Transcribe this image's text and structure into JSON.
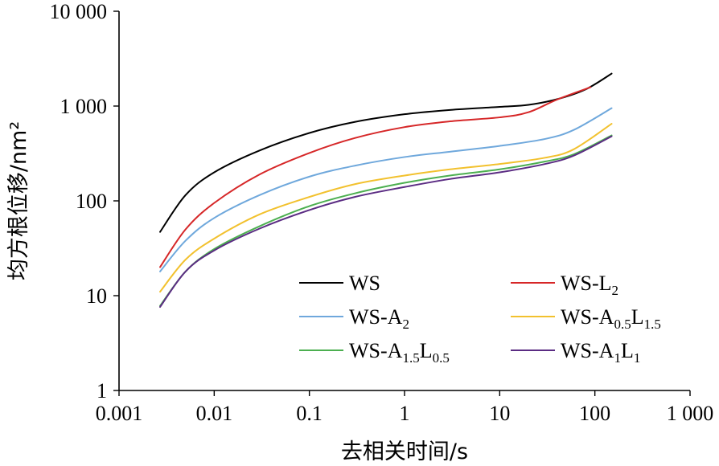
{
  "chart_data": {
    "type": "line",
    "title": "",
    "xlabel": "去相关时间/s",
    "ylabel": "均方根位移/nm²",
    "x_scale": "log",
    "y_scale": "log",
    "xlim": [
      0.001,
      1000
    ],
    "ylim": [
      1,
      10000
    ],
    "grid": false,
    "legend_position": "lower-right",
    "x_ticks": [
      0.001,
      0.01,
      0.1,
      1,
      10,
      100,
      1000
    ],
    "x_tick_labels": [
      "0.001",
      "0.01",
      "0.1",
      "1",
      "10",
      "100",
      "1 000"
    ],
    "y_ticks": [
      1,
      10,
      100,
      1000,
      10000
    ],
    "y_tick_labels": [
      "1",
      "10",
      "100",
      "1 000",
      "10 000"
    ],
    "series": [
      {
        "name": "WS",
        "legend": {
          "base": "WS",
          "parts": []
        },
        "color": "#000000",
        "x": [
          0.0027,
          0.005,
          0.01,
          0.03,
          0.1,
          0.3,
          1,
          3,
          10,
          20,
          40,
          80,
          150
        ],
        "y": [
          47,
          115,
          200,
          340,
          520,
          680,
          820,
          910,
          980,
          1030,
          1180,
          1500,
          2200
        ]
      },
      {
        "name": "WS-L2",
        "legend": {
          "base": "WS-L",
          "parts": [
            {
              "text": "2",
              "sub": true
            }
          ]
        },
        "color": "#d62728",
        "x": [
          0.0027,
          0.005,
          0.01,
          0.03,
          0.1,
          0.3,
          1,
          3,
          10,
          20,
          40,
          90
        ],
        "y": [
          20,
          50,
          95,
          190,
          320,
          460,
          600,
          690,
          760,
          860,
          1170,
          1580
        ]
      },
      {
        "name": "WS-A2",
        "legend": {
          "base": "WS-A",
          "parts": [
            {
              "text": "2",
              "sub": true
            }
          ]
        },
        "color": "#6fa8dc",
        "x": [
          0.0027,
          0.005,
          0.01,
          0.03,
          0.1,
          0.3,
          1,
          3,
          10,
          30,
          60,
          150
        ],
        "y": [
          18,
          38,
          66,
          115,
          180,
          235,
          290,
          330,
          380,
          450,
          560,
          950
        ]
      },
      {
        "name": "WS-A0.5L1.5",
        "legend": {
          "base": "WS-A",
          "parts": [
            {
              "text": "0.5",
              "sub": true
            },
            {
              "text": "L",
              "sub": false
            },
            {
              "text": "1.5",
              "sub": true
            }
          ]
        },
        "color": "#f2c12e",
        "x": [
          0.0027,
          0.005,
          0.01,
          0.03,
          0.1,
          0.3,
          1,
          3,
          10,
          30,
          60,
          150
        ],
        "y": [
          11,
          24,
          40,
          72,
          110,
          150,
          185,
          215,
          245,
          285,
          350,
          650
        ]
      },
      {
        "name": "WS-A1.5L0.5",
        "legend": {
          "base": "WS-A",
          "parts": [
            {
              "text": "1.5",
              "sub": true
            },
            {
              "text": "L",
              "sub": false
            },
            {
              "text": "0.5",
              "sub": true
            }
          ]
        },
        "color": "#4caf50",
        "x": [
          0.0027,
          0.005,
          0.01,
          0.03,
          0.1,
          0.3,
          1,
          3,
          10,
          30,
          60,
          150
        ],
        "y": [
          7.8,
          18,
          31,
          54,
          88,
          120,
          155,
          185,
          215,
          260,
          310,
          490
        ]
      },
      {
        "name": "WS-A1L1",
        "legend": {
          "base": "WS-A",
          "parts": [
            {
              "text": "1",
              "sub": true
            },
            {
              "text": "L",
              "sub": false
            },
            {
              "text": "1",
              "sub": true
            }
          ]
        },
        "color": "#5b2c83",
        "x": [
          0.0027,
          0.005,
          0.01,
          0.03,
          0.1,
          0.3,
          1,
          3,
          10,
          30,
          60,
          150
        ],
        "y": [
          7.6,
          18,
          30,
          51,
          80,
          110,
          140,
          170,
          200,
          245,
          300,
          480
        ]
      }
    ]
  }
}
